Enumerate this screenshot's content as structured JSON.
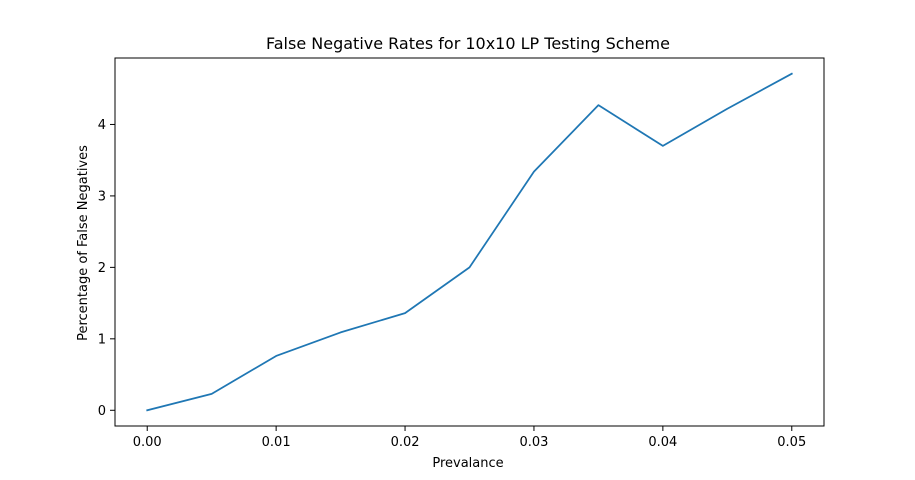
{
  "chart_data": {
    "type": "line",
    "title": "False Negative Rates for 10x10 LP Testing Scheme",
    "xlabel": "Prevalance",
    "ylabel": "Percentage of False Negatives",
    "xlim": [
      -0.0025,
      0.0525
    ],
    "ylim": [
      -0.22,
      4.93
    ],
    "x_ticks": [
      0.0,
      0.01,
      0.02,
      0.03,
      0.04,
      0.05
    ],
    "x_tick_labels": [
      "0.00",
      "0.01",
      "0.02",
      "0.03",
      "0.04",
      "0.05"
    ],
    "y_ticks": [
      0,
      1,
      2,
      3,
      4
    ],
    "y_tick_labels": [
      "0",
      "1",
      "2",
      "3",
      "4"
    ],
    "grid": false,
    "series": [
      {
        "color": "#1f77b4",
        "x": [
          0.0,
          0.005,
          0.01,
          0.015,
          0.02,
          0.025,
          0.03,
          0.035,
          0.04,
          0.045,
          0.05
        ],
        "y": [
          0.0,
          0.23,
          0.76,
          1.09,
          1.36,
          2.0,
          3.34,
          4.27,
          3.7,
          4.22,
          4.71
        ]
      }
    ]
  }
}
